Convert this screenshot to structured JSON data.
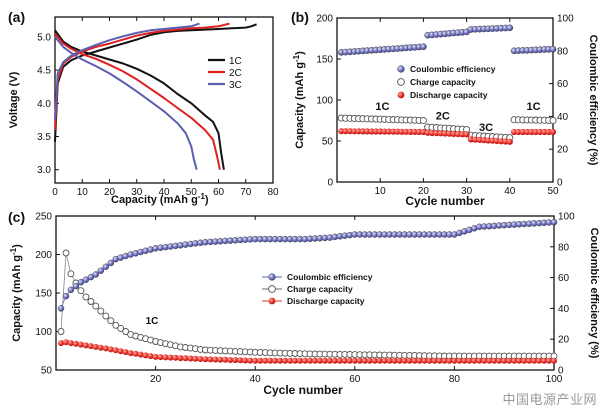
{
  "watermark": "中国电源产业网",
  "chart_data": [
    {
      "panel": "(a)",
      "type": "line",
      "xlabel": "Capacity (mAh g",
      "xlabel_sup": "-1",
      "xlabel_close": ")",
      "ylabel": "Voltage (V)",
      "xlim": [
        0,
        80
      ],
      "ylim": [
        2.8,
        5.3
      ],
      "xticks": [
        0,
        10,
        20,
        30,
        40,
        50,
        60,
        70,
        80
      ],
      "yticks": [
        3.0,
        3.5,
        4.0,
        4.5,
        5.0
      ],
      "legend": [
        "1C",
        "2C",
        "3C"
      ],
      "series": [
        {
          "name": "1C",
          "color": "#111111",
          "charge": {
            "x": [
              0,
              1,
              3,
              6,
              10,
              15,
              20,
              25,
              30,
              35,
              40,
              45,
              50,
              55,
              60,
              65,
              70,
              72,
              74
            ],
            "y": [
              3.42,
              4.3,
              4.55,
              4.65,
              4.72,
              4.78,
              4.84,
              4.9,
              4.96,
              5.03,
              5.07,
              5.09,
              5.1,
              5.11,
              5.12,
              5.13,
              5.14,
              5.16,
              5.19
            ]
          },
          "discharge": {
            "x": [
              0,
              3,
              6,
              10,
              15,
              20,
              25,
              30,
              35,
              40,
              45,
              50,
              55,
              58,
              60,
              61,
              62
            ],
            "y": [
              5.1,
              4.93,
              4.85,
              4.78,
              4.72,
              4.66,
              4.6,
              4.52,
              4.42,
              4.3,
              4.14,
              4.0,
              3.82,
              3.72,
              3.55,
              3.25,
              3.0
            ]
          }
        },
        {
          "name": "2C",
          "color": "#e02020",
          "charge": {
            "x": [
              0,
              1,
              3,
              6,
              10,
              15,
              20,
              25,
              30,
              35,
              40,
              45,
              50,
              55,
              60,
              64
            ],
            "y": [
              3.6,
              4.35,
              4.6,
              4.7,
              4.78,
              4.85,
              4.9,
              4.96,
              5.02,
              5.06,
              5.09,
              5.11,
              5.13,
              5.14,
              5.16,
              5.2
            ]
          },
          "discharge": {
            "x": [
              0,
              3,
              6,
              10,
              15,
              20,
              25,
              30,
              35,
              40,
              45,
              50,
              55,
              58,
              59.5,
              60.5
            ],
            "y": [
              5.05,
              4.9,
              4.82,
              4.74,
              4.67,
              4.58,
              4.48,
              4.36,
              4.22,
              4.08,
              3.93,
              3.78,
              3.6,
              3.45,
              3.2,
              3.0
            ]
          }
        },
        {
          "name": "3C",
          "color": "#5b5fb0",
          "charge": {
            "x": [
              0,
              1,
              3,
              6,
              10,
              15,
              20,
              25,
              30,
              35,
              40,
              45,
              50,
              53
            ],
            "y": [
              3.75,
              4.45,
              4.62,
              4.72,
              4.8,
              4.88,
              4.95,
              5.01,
              5.06,
              5.1,
              5.12,
              5.14,
              5.16,
              5.2
            ]
          },
          "discharge": {
            "x": [
              0,
              3,
              6,
              10,
              15,
              20,
              25,
              30,
              35,
              40,
              45,
              48,
              50,
              51,
              52
            ],
            "y": [
              5.0,
              4.85,
              4.76,
              4.66,
              4.56,
              4.45,
              4.32,
              4.18,
              4.03,
              3.88,
              3.7,
              3.55,
              3.35,
              3.15,
              3.0
            ]
          }
        }
      ]
    },
    {
      "panel": "(b)",
      "type": "scatter",
      "xlabel": "Cycle number",
      "ylabel_left": "Capacity (mAh g",
      "ylabel_left_sup": "-1",
      "ylabel_left_close": ")",
      "ylabel_right": "Coulombic efficiency (%)",
      "xlim": [
        0,
        50
      ],
      "ylim_left": [
        0,
        200
      ],
      "ylim_right": [
        0,
        100
      ],
      "xticks": [
        10,
        20,
        30,
        40,
        50
      ],
      "yticks_left": [
        0,
        50,
        100,
        150,
        200
      ],
      "yticks_right": [
        0,
        20,
        40,
        60,
        80,
        100
      ],
      "rate_labels": [
        {
          "text": "1C",
          "x": 10.5,
          "y": 88
        },
        {
          "text": "2C",
          "x": 24.5,
          "y": 76
        },
        {
          "text": "3C",
          "x": 34.5,
          "y": 62
        },
        {
          "text": "1C",
          "x": 45.5,
          "y": 88
        }
      ],
      "legend": [
        "Coulombic efficiency",
        "Charge capacity",
        "Discharge capacity"
      ],
      "series": [
        {
          "name": "Coulombic efficiency",
          "axis": "right",
          "segments": [
            {
              "from": 1,
              "to": 20,
              "start": 79,
              "end": 82.5
            },
            {
              "from": 21,
              "to": 30,
              "start": 89.5,
              "end": 91.5
            },
            {
              "from": 31,
              "to": 40,
              "start": 93,
              "end": 94
            },
            {
              "from": 41,
              "to": 50,
              "start": 80,
              "end": 81
            }
          ]
        },
        {
          "name": "Charge capacity",
          "axis": "left",
          "segments": [
            {
              "from": 1,
              "to": 20,
              "start": 78,
              "end": 75
            },
            {
              "from": 21,
              "to": 30,
              "start": 67,
              "end": 64
            },
            {
              "from": 31,
              "to": 40,
              "start": 57,
              "end": 54
            },
            {
              "from": 41,
              "to": 50,
              "start": 76,
              "end": 75
            }
          ]
        },
        {
          "name": "Discharge capacity",
          "axis": "left",
          "segments": [
            {
              "from": 1,
              "to": 20,
              "start": 62,
              "end": 61
            },
            {
              "from": 21,
              "to": 30,
              "start": 60,
              "end": 58
            },
            {
              "from": 31,
              "to": 40,
              "start": 52,
              "end": 49
            },
            {
              "from": 41,
              "to": 50,
              "start": 61,
              "end": 61
            }
          ]
        }
      ]
    },
    {
      "panel": "(c)",
      "type": "scatter",
      "xlabel": "Cycle number",
      "ylabel_left": "Capacity (mAh g",
      "ylabel_left_sup": "-1",
      "ylabel_left_close": ")",
      "ylabel_right": "Coulombic efficiency (%)",
      "xlim": [
        0,
        100
      ],
      "ylim_left": [
        50,
        250
      ],
      "ylim_right": [
        0,
        100
      ],
      "xticks": [
        20,
        40,
        60,
        80,
        100
      ],
      "yticks_left": [
        50,
        100,
        150,
        200,
        250
      ],
      "yticks_right": [
        0,
        20,
        40,
        60,
        80,
        100
      ],
      "rate_label": {
        "text": "1C",
        "x": 18,
        "y": 110
      },
      "legend": [
        "Coulombic efficiency",
        "Charge capacity",
        "Discharge capacity"
      ],
      "series": [
        {
          "name": "Coulombic efficiency",
          "axis": "right",
          "keyframes": {
            "x": [
              1,
              2,
              3,
              5,
              8,
              10,
              12,
              15,
              20,
              25,
              30,
              35,
              40,
              50,
              55,
              60,
              70,
              80,
              83,
              85,
              90,
              95,
              100
            ],
            "y": [
              40,
              48,
              52,
              57,
              62,
              67,
              72,
              75,
              79,
              81,
              83,
              84,
              85,
              85,
              86,
              88,
              88,
              88,
              91,
              93,
              94,
              95,
              96
            ]
          }
        },
        {
          "name": "Charge capacity",
          "axis": "left",
          "keyframes": {
            "x": [
              1,
              2,
              3,
              4,
              5,
              6,
              8,
              10,
              12,
              15,
              20,
              25,
              30,
              40,
              50,
              60,
              70,
              80,
              90,
              100
            ],
            "y": [
              100,
              202,
              175,
              163,
              153,
              145,
              133,
              120,
              108,
              96,
              87,
              80,
              76,
              73,
              71,
              70,
              69,
              68,
              68,
              68
            ]
          }
        },
        {
          "name": "Discharge capacity",
          "axis": "left",
          "keyframes": {
            "x": [
              1,
              2,
              3,
              5,
              7,
              10,
              15,
              20,
              30,
              40,
              60,
              80,
              100
            ],
            "y": [
              85,
              86,
              85,
              83,
              81,
              78,
              72,
              67,
              64,
              62,
              62,
              62,
              62
            ]
          }
        }
      ]
    }
  ]
}
